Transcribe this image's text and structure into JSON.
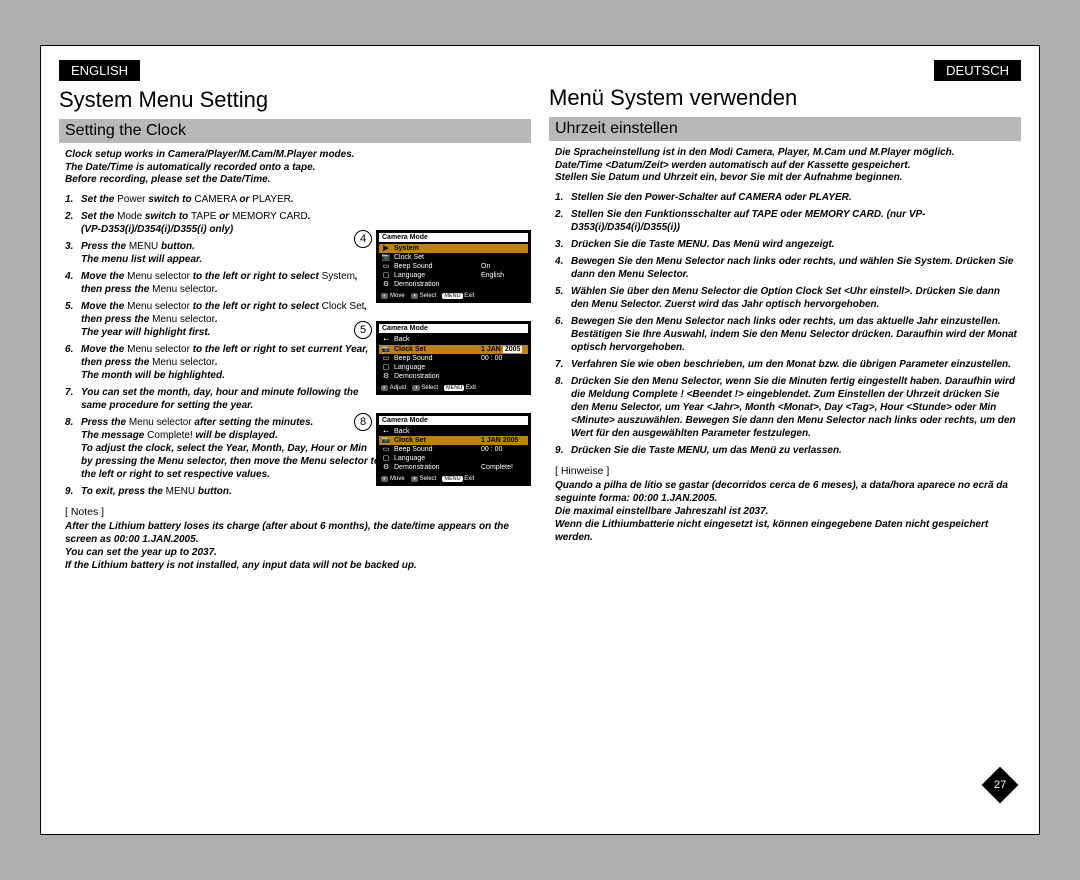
{
  "page_number": "27",
  "english": {
    "lang_tab": "ENGLISH",
    "h1": "System Menu Setting",
    "h2": "Setting the Clock",
    "intro_lines": [
      "Clock setup works in Camera/Player/M.Cam/M.Player modes.",
      "The Date/Time is automatically recorded onto a tape.",
      "Before recording, please set the Date/Time."
    ],
    "steps": [
      {
        "bold": "Set the ",
        "roman": "Power",
        "bold2": " switch to ",
        "roman2": "CAMERA ",
        "bold3": "or ",
        "roman3": "PLAYER",
        "bold4": "."
      },
      {
        "bold": "Set the ",
        "roman": "Mode ",
        "bold2": "switch to ",
        "roman2": "TAPE ",
        "bold3": "or ",
        "roman3": "MEMORY CARD",
        "bold4": ".",
        "sub": "(VP-D353(i)/D354(i)/D355(i) only)"
      },
      {
        "bold": "Press the ",
        "roman": "MENU ",
        "bold2": "button.",
        "sub": "The menu list will appear."
      },
      {
        "bold": "Move the ",
        "roman": "Menu selector ",
        "bold2": "to the left or right to select ",
        "roman2": "System",
        "bold3": ", then press the ",
        "roman3": "Menu selector",
        "bold4": "."
      },
      {
        "bold": "Move the ",
        "roman": "Menu selector ",
        "bold2": "to the left or right to select ",
        "roman2": "Clock Set",
        "bold3": ", then press the ",
        "roman3": "Menu selector",
        "bold4": ".",
        "sub": "The year will highlight first."
      },
      {
        "bold": "Move the ",
        "roman": "Menu selector ",
        "bold2": "to the left or right to set current Year, then press the ",
        "roman2": "Menu selector",
        "bold3": ".",
        "sub": "The month will be highlighted."
      },
      {
        "bold": "You can set the month, day, hour and minute following the same procedure for setting the year."
      },
      {
        "bold": "Press the ",
        "roman": "Menu selector ",
        "bold2": "after setting the minutes.",
        "sub": "The message ",
        "subroman": "Complete! ",
        "sub2": "will be displayed.",
        "extra": "To adjust the clock, select the Year, Month, Day, Hour or Min by pressing the Menu selector, then move the Menu selector to the left or right to set respective values."
      },
      {
        "bold": "To exit, press the ",
        "roman": "MENU ",
        "bold2": "button."
      }
    ],
    "notes_hd": "[ Notes ]",
    "notes": [
      "After the Lithium battery loses its charge (after about 6 months), the date/time appears on the screen as 00:00 1.JAN.2005.",
      "You can set the year up to 2037.",
      "If the Lithium battery is not installed, any input data will not be backed up."
    ]
  },
  "german": {
    "lang_tab": "DEUTSCH",
    "h1": "Menü System verwenden",
    "h2": "Uhrzeit einstellen",
    "intro_lines": [
      "Die Spracheinstellung ist in den Modi Camera, Player, M.Cam und M.Player möglich.",
      "Date/Time <Datum/Zeit> werden automatisch auf der Kassette gespeichert.",
      "Stellen Sie Datum und Uhrzeit ein, bevor Sie mit der Aufnahme beginnen."
    ],
    "steps": [
      "Stellen Sie den Power-Schalter auf CAMERA oder PLAYER.",
      "Stellen Sie den Funktionsschalter auf TAPE oder MEMORY CARD. (nur VP-D353(i)/D354(i)/D355(i))",
      "Drücken Sie die Taste MENU. Das Menü wird angezeigt.",
      "Bewegen Sie den Menu Selector nach links oder rechts, und wählen Sie System. Drücken Sie dann den Menu Selector.",
      "Wählen Sie über den Menu Selector die Option Clock Set <Uhr einstell>. Drücken Sie dann den Menu Selector. Zuerst wird das Jahr optisch hervorgehoben.",
      "Bewegen Sie den Menu Selector nach links oder rechts, um das aktuelle Jahr einzustellen. Bestätigen Sie Ihre Auswahl, indem Sie den Menu Selector drücken. Daraufhin wird der Monat optisch hervorgehoben.",
      "Verfahren Sie wie oben beschrieben, um den Monat bzw. die übrigen Parameter einzustellen.",
      "Drücken Sie den Menu Selector, wenn Sie die Minuten fertig eingestellt haben. Daraufhin wird die Meldung Complete ! <Beendet !> eingeblendet. Zum Einstellen der Uhrzeit drücken Sie den Menu Selector, um Year <Jahr>, Month <Monat>, Day <Tag>, Hour <Stunde> oder Min <Minute> auszuwählen. Bewegen Sie dann den Menu Selector nach links oder rechts, um den Wert für den ausgewählten Parameter festzulegen.",
      "Drücken Sie die Taste MENU, um das Menü zu verlassen."
    ],
    "notes_hd": "[ Hinweise ]",
    "notes": [
      "Quando a pilha de lítio se gastar (decorridos cerca de 6 meses), a data/hora aparece no ecrã da seguinte forma: 00:00 1.JAN.2005.",
      "Die maximal einstellbare Jahreszahl ist 2037.",
      "Wenn die Lithiumbatterie nicht eingesetzt ist, können eingegebene Daten nicht gespeichert werden."
    ]
  },
  "figures": {
    "fig4": {
      "num": "4",
      "title": "Camera Mode",
      "menu_header": "System",
      "rows": [
        {
          "label": "Clock Set",
          "value": ""
        },
        {
          "label": "Beep Sound",
          "value": "On"
        },
        {
          "label": "Language",
          "value": "English"
        },
        {
          "label": "Demonstration",
          "value": ""
        }
      ],
      "footer": {
        "a": "Move",
        "b": "Select",
        "c": "Exit",
        "c_btn": "MENU"
      }
    },
    "fig5": {
      "num": "5",
      "title": "Camera Mode",
      "back": "Back",
      "highlight": "Clock Set",
      "date": {
        "d": "1",
        "m": "JAN",
        "y": "2005",
        "t": "00 : 00"
      },
      "rows": [
        {
          "label": "Beep Sound"
        },
        {
          "label": "Language"
        },
        {
          "label": "Demonstration"
        }
      ],
      "footer": {
        "a": "Adjust",
        "b": "Select",
        "c": "Exit",
        "c_btn": "MENU"
      }
    },
    "fig8": {
      "num": "8",
      "title": "Camera Mode",
      "back": "Back",
      "highlight": "Clock Set",
      "date": {
        "d": "1",
        "m": "JAN",
        "y": "2005",
        "t": "00 : 00"
      },
      "complete": "Complete!",
      "rows": [
        {
          "label": "Beep Sound"
        },
        {
          "label": "Language"
        },
        {
          "label": "Demonstration"
        }
      ],
      "footer": {
        "a": "Move",
        "b": "Select",
        "c": "Exit",
        "c_btn": "MENU"
      }
    }
  }
}
